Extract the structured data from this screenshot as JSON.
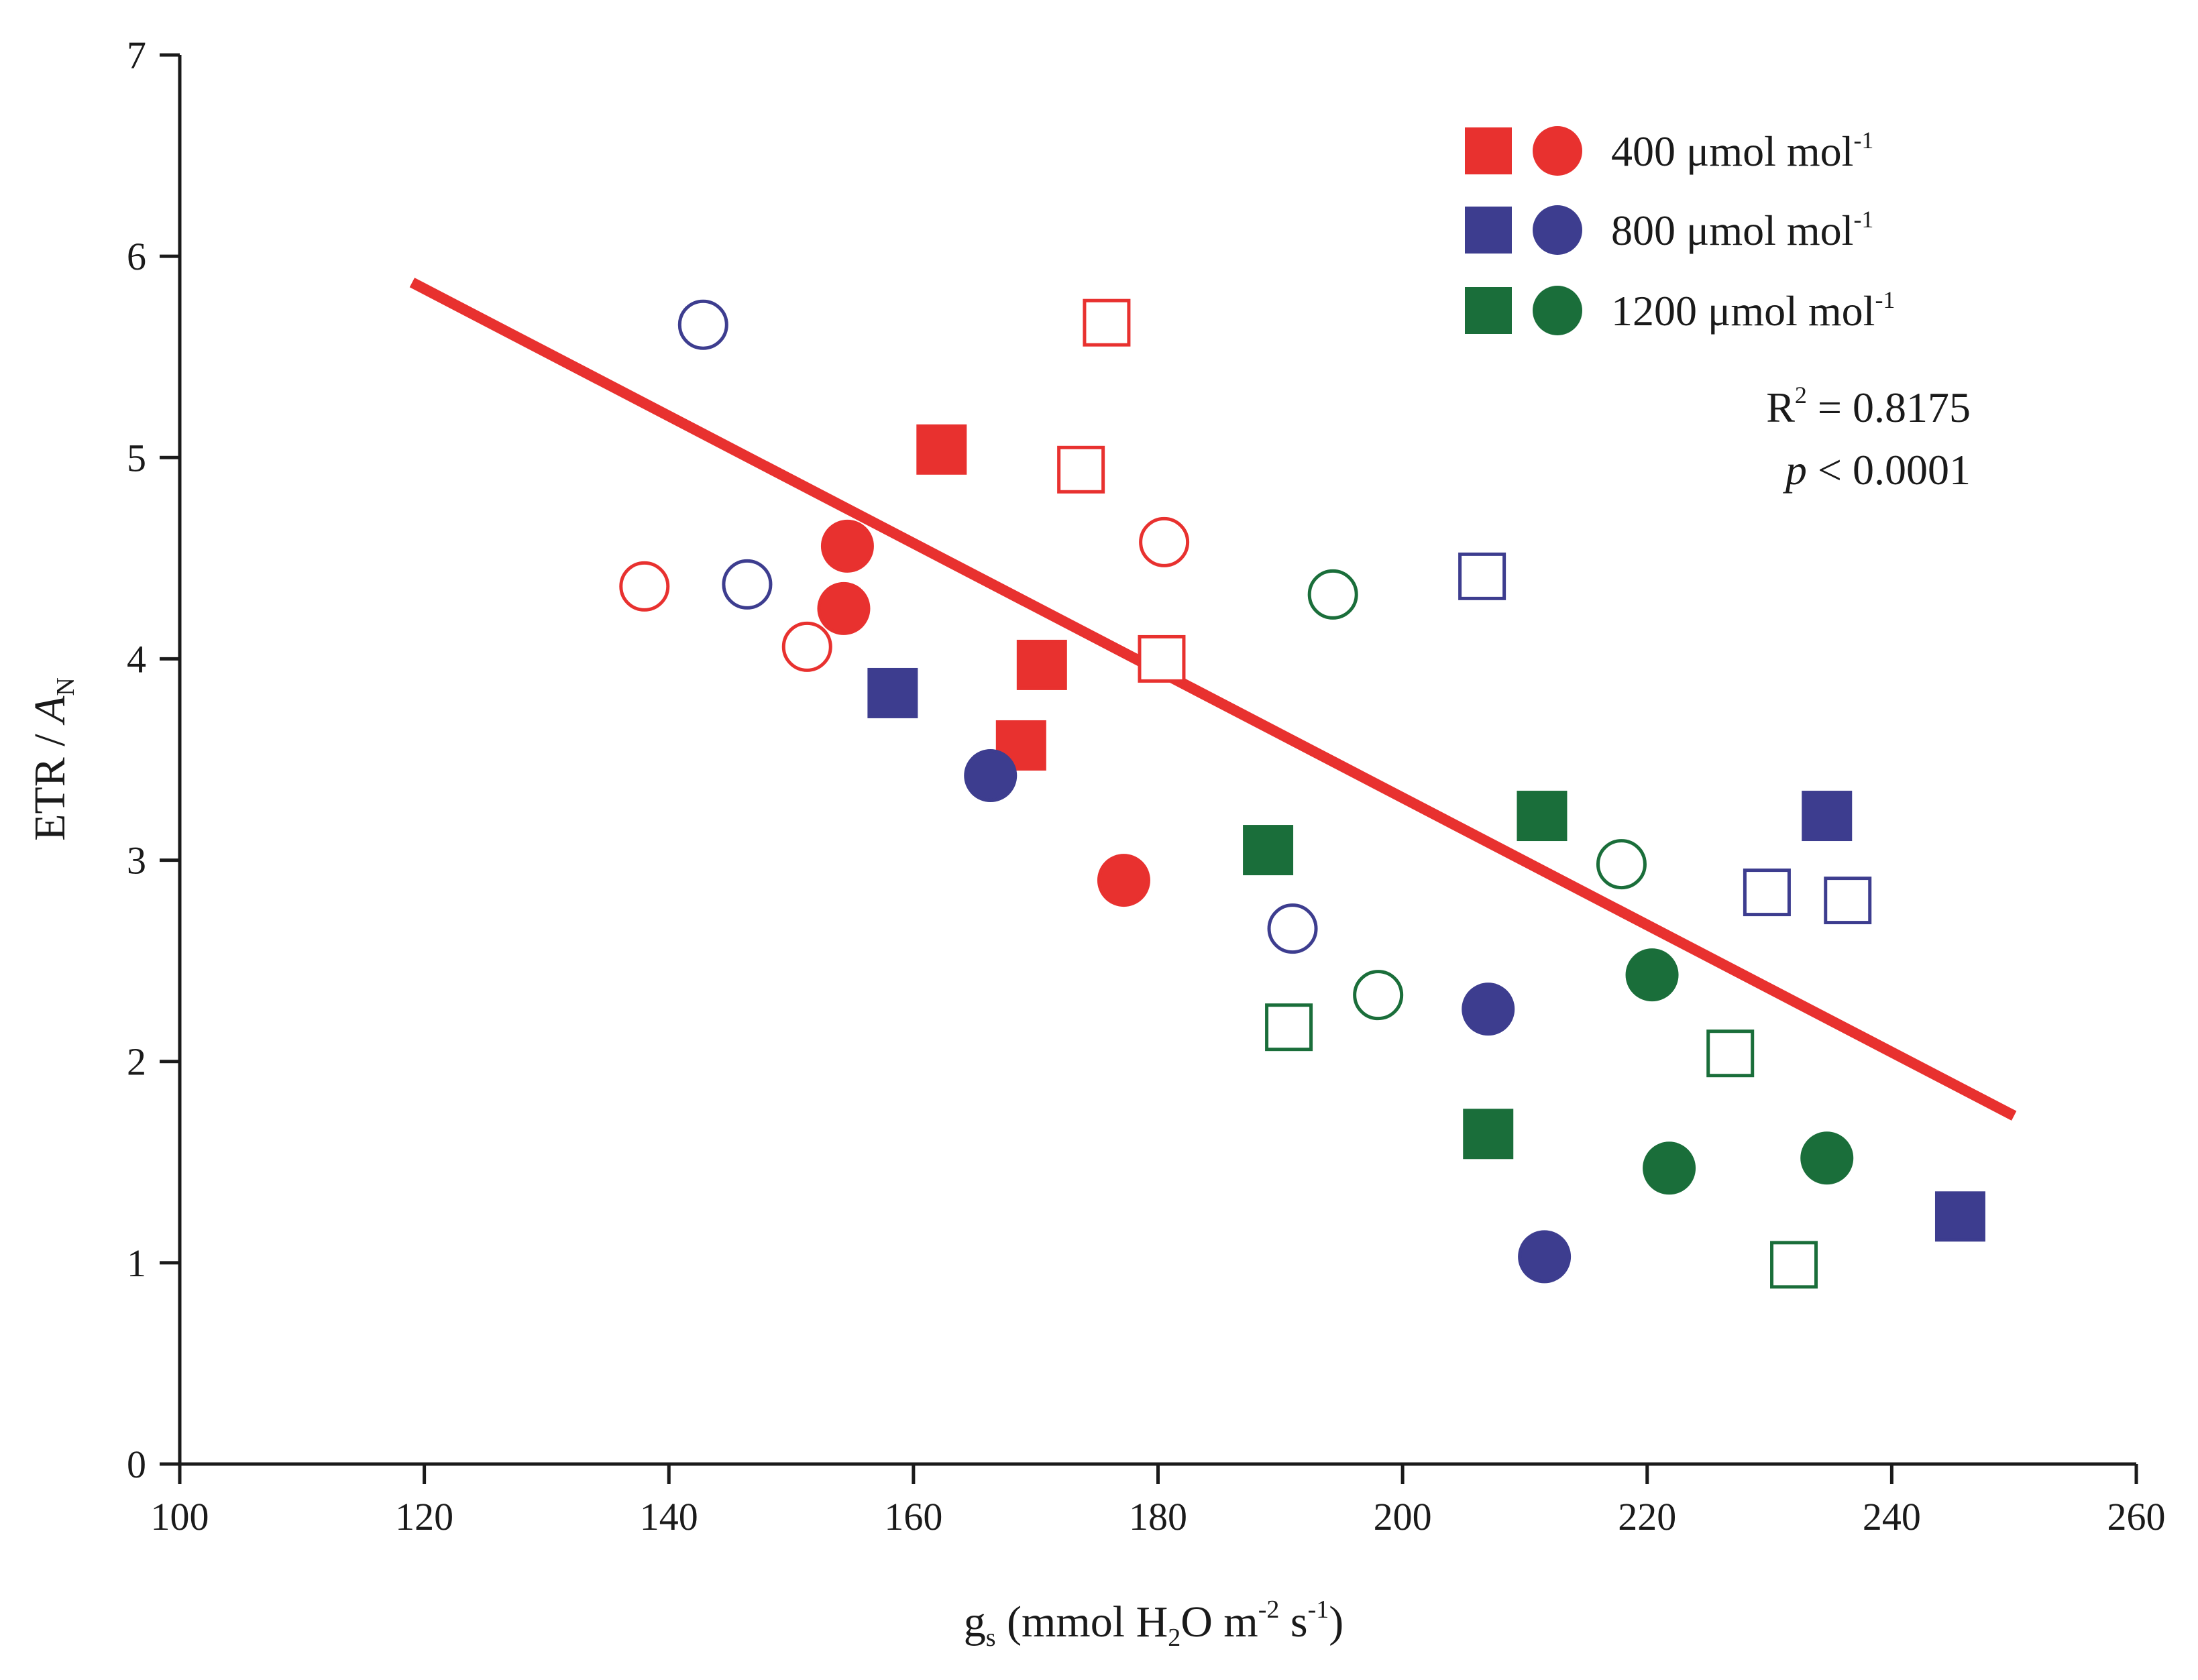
{
  "chart_data": {
    "type": "scatter",
    "xlabel": {
      "prefix": "g",
      "sub": "s",
      "mid": " (mmol H",
      "sub2": "2",
      "mid2": "O m",
      "sup1": "-2",
      "mid3": " s",
      "sup2": "-1",
      "suffix": ")"
    },
    "ylabel": {
      "prefix": "ETR / ",
      "italic": "A",
      "sub": "N"
    },
    "xlim": [
      100,
      260
    ],
    "ylim": [
      0,
      7
    ],
    "xticks": [
      100,
      120,
      140,
      160,
      180,
      200,
      220,
      240,
      260
    ],
    "yticks": [
      0,
      1,
      2,
      3,
      4,
      5,
      6,
      7
    ],
    "legend_position": "top-right",
    "grid": false,
    "colors": {
      "400": "#e8312f",
      "800": "#3d3d8f",
      "1200": "#1a6e3a",
      "trend": "#e8312f"
    },
    "legend": [
      {
        "key": "400",
        "label": "400 μmol mol",
        "sup": "-1"
      },
      {
        "key": "800",
        "label": "800 μmol mol",
        "sup": "-1"
      },
      {
        "key": "1200",
        "label": "1200 μmol mol",
        "sup": "-1"
      }
    ],
    "stats": {
      "r2_prefix": "R",
      "r2_sup": "2",
      "r2_value": " = 0.8175",
      "p_italic": "p",
      "p_value": " < 0.0001"
    },
    "trend_line": {
      "x": [
        119,
        250
      ],
      "y": [
        5.87,
        1.73
      ]
    },
    "series": [
      {
        "key": "400",
        "marker": "square",
        "filled": true,
        "points": [
          [
            162.3,
            5.04
          ],
          [
            170.5,
            3.97
          ],
          [
            168.8,
            3.57
          ]
        ]
      },
      {
        "key": "400",
        "marker": "square",
        "filled": false,
        "points": [
          [
            175.8,
            5.67
          ],
          [
            173.7,
            4.94
          ],
          [
            180.3,
            4.0
          ]
        ]
      },
      {
        "key": "400",
        "marker": "circle",
        "filled": true,
        "points": [
          [
            154.6,
            4.56
          ],
          [
            154.3,
            4.25
          ],
          [
            177.2,
            2.9
          ]
        ]
      },
      {
        "key": "400",
        "marker": "circle",
        "filled": false,
        "points": [
          [
            138.0,
            4.36
          ],
          [
            151.3,
            4.06
          ],
          [
            180.5,
            4.58
          ]
        ]
      },
      {
        "key": "800",
        "marker": "square",
        "filled": true,
        "points": [
          [
            158.3,
            3.83
          ],
          [
            234.7,
            3.22
          ],
          [
            245.6,
            1.23
          ]
        ]
      },
      {
        "key": "800",
        "marker": "square",
        "filled": false,
        "points": [
          [
            206.5,
            4.41
          ],
          [
            229.8,
            2.84
          ],
          [
            236.4,
            2.8
          ]
        ]
      },
      {
        "key": "800",
        "marker": "circle",
        "filled": true,
        "points": [
          [
            166.3,
            3.42
          ],
          [
            207.0,
            2.26
          ],
          [
            211.6,
            1.03
          ]
        ]
      },
      {
        "key": "800",
        "marker": "circle",
        "filled": false,
        "points": [
          [
            142.8,
            5.66
          ],
          [
            146.4,
            4.37
          ],
          [
            191.0,
            2.66
          ]
        ]
      },
      {
        "key": "1200",
        "marker": "square",
        "filled": true,
        "points": [
          [
            189.0,
            3.05
          ],
          [
            211.4,
            3.22
          ],
          [
            207.0,
            1.64
          ]
        ]
      },
      {
        "key": "1200",
        "marker": "square",
        "filled": false,
        "points": [
          [
            190.7,
            2.17
          ],
          [
            226.8,
            2.04
          ],
          [
            232.0,
            0.99
          ]
        ]
      },
      {
        "key": "1200",
        "marker": "circle",
        "filled": true,
        "points": [
          [
            220.4,
            2.43
          ],
          [
            221.8,
            1.47
          ],
          [
            234.7,
            1.52
          ]
        ]
      },
      {
        "key": "1200",
        "marker": "circle",
        "filled": false,
        "points": [
          [
            194.3,
            4.32
          ],
          [
            198.0,
            2.33
          ],
          [
            217.9,
            2.98
          ]
        ]
      }
    ]
  }
}
